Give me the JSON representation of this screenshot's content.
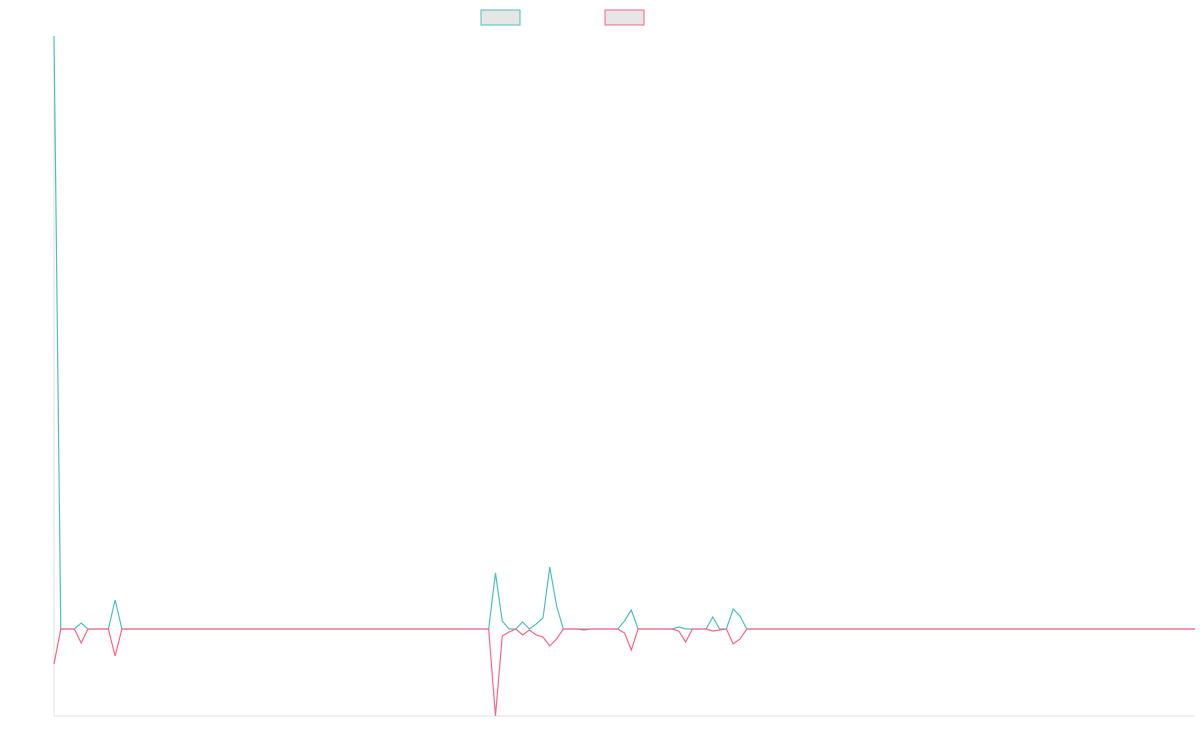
{
  "chart_data": {
    "type": "line",
    "categories": [
      null,
      null,
      null,
      null,
      null,
      null,
      null,
      null,
      null,
      null,
      null,
      null,
      null,
      null,
      null,
      null,
      null,
      null,
      null,
      null,
      null,
      null,
      null,
      null,
      null,
      null,
      null,
      null,
      null,
      null,
      null,
      null,
      null,
      null,
      null,
      null,
      null,
      null,
      null,
      null,
      null,
      null,
      null,
      null,
      null,
      null,
      null,
      null,
      null,
      null,
      null,
      null,
      null,
      null,
      null,
      null,
      null,
      null,
      null,
      null,
      null,
      null,
      null,
      null,
      null,
      null,
      null,
      null,
      null,
      null,
      null,
      null,
      null,
      null,
      null,
      null,
      null,
      null,
      null,
      null,
      null,
      null,
      null,
      null,
      null,
      null,
      null,
      null,
      null,
      null,
      null,
      null,
      null,
      null,
      null,
      null,
      null,
      null,
      null,
      null,
      null,
      null,
      null,
      null,
      null,
      null,
      null,
      null,
      null,
      null,
      null,
      null,
      null,
      null,
      null,
      null,
      null,
      null,
      null,
      null,
      null,
      null,
      null,
      null,
      null,
      null,
      null,
      null,
      null,
      null,
      null,
      null,
      null,
      null,
      null,
      null,
      null,
      null,
      null,
      null,
      null,
      null,
      null,
      null,
      null,
      null,
      null,
      null,
      null,
      null,
      null,
      null,
      null,
      null,
      null,
      null,
      null,
      null,
      null,
      null,
      null,
      null,
      null,
      null,
      null,
      null,
      null,
      null,
      null
    ],
    "series": [
      {
        "color": "#4bc0c0",
        "values": [
          593,
          0,
          0,
          0,
          6,
          0,
          0,
          0,
          0,
          29,
          0,
          0,
          0,
          0,
          0,
          0,
          0,
          0,
          0,
          0,
          0,
          0,
          0,
          0,
          0,
          0,
          0,
          0,
          0,
          0,
          0,
          0,
          0,
          0,
          0,
          0,
          0,
          0,
          0,
          0,
          0,
          0,
          0,
          0,
          0,
          0,
          0,
          0,
          0,
          0,
          0,
          0,
          0,
          0,
          0,
          0,
          0,
          0,
          0,
          0,
          0,
          0,
          0,
          0,
          0,
          56,
          8,
          0,
          0,
          7,
          0,
          5,
          11,
          62,
          23,
          0,
          0,
          0,
          0,
          0,
          0,
          0,
          0,
          0,
          8,
          19,
          0,
          0,
          0,
          0,
          0,
          0,
          2,
          0,
          0,
          0,
          0,
          12,
          0,
          0,
          20,
          13,
          0,
          0,
          0,
          0,
          0,
          0,
          0,
          0,
          0,
          0,
          0,
          0,
          0,
          0,
          0,
          0,
          0,
          0,
          0,
          0,
          0,
          0,
          0,
          0,
          0,
          0,
          0,
          0,
          0,
          0,
          0,
          0,
          0,
          0,
          0,
          0,
          0,
          0,
          0,
          0,
          0,
          0,
          0,
          0,
          0,
          0,
          0,
          0,
          0,
          0,
          0,
          0,
          0,
          0,
          0,
          0,
          0,
          0,
          0,
          0,
          0,
          0,
          0,
          0,
          0,
          0,
          0
        ]
      },
      {
        "color": "#ff6384",
        "values": [
          -35,
          0,
          0,
          0,
          -14,
          0,
          0,
          0,
          0,
          -27,
          0,
          0,
          0,
          0,
          0,
          0,
          0,
          0,
          0,
          0,
          0,
          0,
          0,
          0,
          0,
          0,
          0,
          0,
          0,
          0,
          0,
          0,
          0,
          0,
          0,
          0,
          0,
          0,
          0,
          0,
          0,
          0,
          0,
          0,
          0,
          0,
          0,
          0,
          0,
          0,
          0,
          0,
          0,
          0,
          0,
          0,
          0,
          0,
          0,
          0,
          0,
          0,
          0,
          0,
          0,
          -87,
          -7,
          -3,
          0,
          -6,
          -1,
          -6,
          -8,
          -17,
          -10,
          0,
          0,
          0,
          -1,
          0,
          0,
          0,
          0,
          0,
          -4,
          -21,
          0,
          0,
          0,
          0,
          0,
          0,
          -2,
          -13,
          0,
          0,
          0,
          -2,
          -1,
          0,
          -15,
          -10,
          0,
          0,
          0,
          0,
          0,
          0,
          0,
          0,
          0,
          0,
          0,
          0,
          0,
          0,
          0,
          0,
          0,
          0,
          0,
          0,
          0,
          0,
          0,
          0,
          0,
          0,
          0,
          0,
          0,
          0,
          0,
          0,
          0,
          0,
          0,
          0,
          0,
          0,
          0,
          0,
          0,
          0,
          0,
          0,
          0,
          0,
          0,
          0,
          0,
          0,
          0,
          0,
          0,
          0,
          0,
          0,
          0,
          0,
          0,
          0,
          0,
          0,
          0,
          0,
          0,
          0,
          0
        ]
      }
    ],
    "ylim": [
      -87,
      593
    ]
  }
}
